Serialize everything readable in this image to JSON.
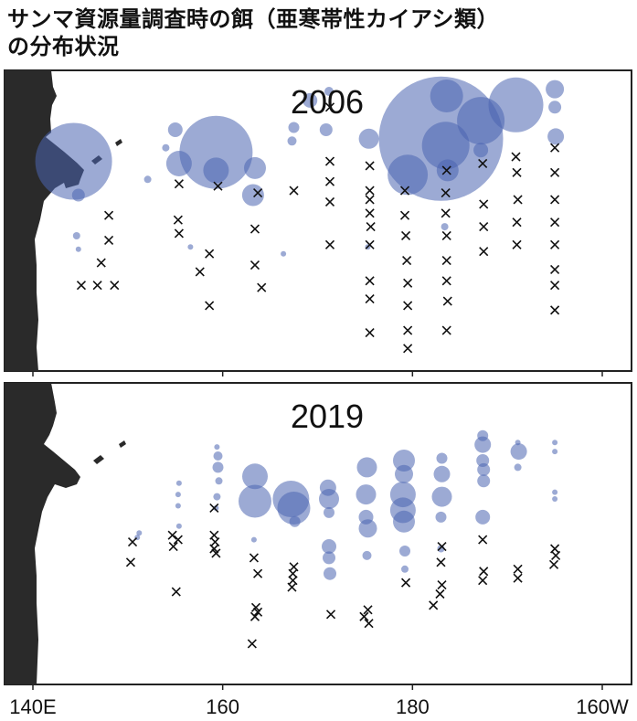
{
  "title": {
    "line1": "サンマ資源量調査時の餌（亜寒帯性カイアシ類）",
    "line2": "の分布状況"
  },
  "colors": {
    "bubble": "#4a64b0",
    "cross": "#111111",
    "land": "#2a2a2a",
    "frame": "#222222"
  },
  "chart_data": [
    {
      "type": "scatter",
      "title": "2006",
      "xlabel": "",
      "ylabel": "",
      "x_ticks": [
        "140E",
        "160",
        "180",
        "160W"
      ],
      "x_tick_values": [
        140,
        160,
        180,
        200
      ],
      "xlim": [
        140,
        202
      ],
      "ylim": [
        0,
        1
      ],
      "bubbles": [
        {
          "x": 144.3,
          "y": 0.93,
          "r": 42
        },
        {
          "x": 144.8,
          "y": 0.78,
          "r": 7
        },
        {
          "x": 144.6,
          "y": 0.6,
          "r": 4
        },
        {
          "x": 144.8,
          "y": 0.54,
          "r": 3
        },
        {
          "x": 152.1,
          "y": 0.85,
          "r": 4
        },
        {
          "x": 154,
          "y": 0.99,
          "r": 4
        },
        {
          "x": 155,
          "y": 1.07,
          "r": 8
        },
        {
          "x": 155.4,
          "y": 0.92,
          "r": 14
        },
        {
          "x": 159.3,
          "y": 0.97,
          "r": 40
        },
        {
          "x": 159.3,
          "y": 0.89,
          "r": 14
        },
        {
          "x": 156.6,
          "y": 0.55,
          "r": 3
        },
        {
          "x": 163.4,
          "y": 0.9,
          "r": 12
        },
        {
          "x": 163.2,
          "y": 0.78,
          "r": 12
        },
        {
          "x": 167.5,
          "y": 1.08,
          "r": 6
        },
        {
          "x": 167.3,
          "y": 1.02,
          "r": 5
        },
        {
          "x": 166.4,
          "y": 0.52,
          "r": 3
        },
        {
          "x": 169.2,
          "y": 1.2,
          "r": 8
        },
        {
          "x": 171.2,
          "y": 1.24,
          "r": 5
        },
        {
          "x": 170.9,
          "y": 1.07,
          "r": 7
        },
        {
          "x": 175.4,
          "y": 1.03,
          "r": 11
        },
        {
          "x": 175.3,
          "y": 0.55,
          "r": 3
        },
        {
          "x": 183,
          "y": 1.03,
          "r": 68
        },
        {
          "x": 179.5,
          "y": 0.87,
          "r": 22
        },
        {
          "x": 183.6,
          "y": 1.22,
          "r": 18
        },
        {
          "x": 183.5,
          "y": 1.0,
          "r": 26
        },
        {
          "x": 183.7,
          "y": 0.89,
          "r": 12
        },
        {
          "x": 183.4,
          "y": 0.64,
          "r": 4
        },
        {
          "x": 187.2,
          "y": 1.11,
          "r": 26
        },
        {
          "x": 187.2,
          "y": 0.98,
          "r": 8
        },
        {
          "x": 190.9,
          "y": 1.18,
          "r": 30
        },
        {
          "x": 195,
          "y": 1.25,
          "r": 10
        },
        {
          "x": 195,
          "y": 1.17,
          "r": 7
        },
        {
          "x": 195.1,
          "y": 1.04,
          "r": 9
        }
      ],
      "crosses": [
        [
          148,
          0.69
        ],
        [
          148,
          0.58
        ],
        [
          147.2,
          0.48
        ],
        [
          145.1,
          0.38
        ],
        [
          146.8,
          0.38
        ],
        [
          148.6,
          0.38
        ],
        [
          155.4,
          0.83
        ],
        [
          155.3,
          0.67
        ],
        [
          155.4,
          0.61
        ],
        [
          157.6,
          0.44
        ],
        [
          158.6,
          0.52
        ],
        [
          158.6,
          0.29
        ],
        [
          159.5,
          0.82
        ],
        [
          163.7,
          0.79
        ],
        [
          163.4,
          0.63
        ],
        [
          163.4,
          0.47
        ],
        [
          164.1,
          0.37
        ],
        [
          167.5,
          0.8
        ],
        [
          171.3,
          1.17
        ],
        [
          171.3,
          0.93
        ],
        [
          171.3,
          0.84
        ],
        [
          171.3,
          0.75
        ],
        [
          171.3,
          0.56
        ],
        [
          175.5,
          0.91
        ],
        [
          175.5,
          0.8
        ],
        [
          175.5,
          0.76
        ],
        [
          175.5,
          0.7
        ],
        [
          175.6,
          0.64
        ],
        [
          175.5,
          0.56
        ],
        [
          175.5,
          0.4
        ],
        [
          175.5,
          0.32
        ],
        [
          175.5,
          0.17
        ],
        [
          179.2,
          0.8
        ],
        [
          179.2,
          0.69
        ],
        [
          179.3,
          0.6
        ],
        [
          179.4,
          0.49
        ],
        [
          179.5,
          0.39
        ],
        [
          179.5,
          0.29
        ],
        [
          179.5,
          0.18
        ],
        [
          179.5,
          0.1
        ],
        [
          183.6,
          0.89
        ],
        [
          183.5,
          0.79
        ],
        [
          183.5,
          0.7
        ],
        [
          183.6,
          0.6
        ],
        [
          183.6,
          0.49
        ],
        [
          183.6,
          0.4
        ],
        [
          183.7,
          0.31
        ],
        [
          183.6,
          0.18
        ],
        [
          187.4,
          0.92
        ],
        [
          187.5,
          0.74
        ],
        [
          187.5,
          0.64
        ],
        [
          187.5,
          0.53
        ],
        [
          190.9,
          0.95
        ],
        [
          191,
          0.88
        ],
        [
          191.1,
          0.76
        ],
        [
          191,
          0.66
        ],
        [
          191,
          0.56
        ],
        [
          195,
          0.99
        ],
        [
          195,
          0.88
        ],
        [
          195,
          0.76
        ],
        [
          195,
          0.66
        ],
        [
          195,
          0.56
        ],
        [
          195,
          0.45
        ],
        [
          195,
          0.38
        ],
        [
          195,
          0.27
        ]
      ]
    },
    {
      "type": "scatter",
      "title": "2019",
      "xlabel": "",
      "ylabel": "",
      "x_ticks": [
        "140E",
        "160",
        "180",
        "160W"
      ],
      "x_tick_values": [
        140,
        160,
        180,
        200
      ],
      "xlim": [
        140,
        202
      ],
      "ylim": [
        0,
        1
      ],
      "bubbles": [
        {
          "x": 151.2,
          "y": 0.67,
          "r": 3
        },
        {
          "x": 151,
          "y": 0.65,
          "r": 3
        },
        {
          "x": 155.4,
          "y": 0.89,
          "r": 3
        },
        {
          "x": 155.3,
          "y": 0.84,
          "r": 3
        },
        {
          "x": 155.3,
          "y": 0.79,
          "r": 3
        },
        {
          "x": 155.4,
          "y": 0.7,
          "r": 3
        },
        {
          "x": 159.4,
          "y": 1.05,
          "r": 3
        },
        {
          "x": 159.5,
          "y": 1.01,
          "r": 5
        },
        {
          "x": 159.5,
          "y": 0.96,
          "r": 6
        },
        {
          "x": 159.6,
          "y": 0.9,
          "r": 4
        },
        {
          "x": 159.4,
          "y": 0.83,
          "r": 4
        },
        {
          "x": 159.3,
          "y": 0.78,
          "r": 3
        },
        {
          "x": 163.4,
          "y": 0.92,
          "r": 14
        },
        {
          "x": 163.4,
          "y": 0.81,
          "r": 18
        },
        {
          "x": 163.3,
          "y": 0.64,
          "r": 3
        },
        {
          "x": 167.2,
          "y": 0.82,
          "r": 20
        },
        {
          "x": 167.5,
          "y": 0.78,
          "r": 18
        },
        {
          "x": 167.6,
          "y": 0.72,
          "r": 6
        },
        {
          "x": 171.1,
          "y": 0.87,
          "r": 9
        },
        {
          "x": 171.2,
          "y": 0.82,
          "r": 11
        },
        {
          "x": 171.2,
          "y": 0.76,
          "r": 6
        },
        {
          "x": 171.2,
          "y": 0.61,
          "r": 8
        },
        {
          "x": 171.2,
          "y": 0.56,
          "r": 7
        },
        {
          "x": 171.3,
          "y": 0.49,
          "r": 7
        },
        {
          "x": 175.2,
          "y": 0.96,
          "r": 11
        },
        {
          "x": 175.1,
          "y": 0.84,
          "r": 11
        },
        {
          "x": 175.1,
          "y": 0.74,
          "r": 8
        },
        {
          "x": 175.3,
          "y": 0.69,
          "r": 10
        },
        {
          "x": 175.2,
          "y": 0.57,
          "r": 5
        },
        {
          "x": 179.1,
          "y": 0.99,
          "r": 12
        },
        {
          "x": 179.1,
          "y": 0.93,
          "r": 10
        },
        {
          "x": 179,
          "y": 0.84,
          "r": 14
        },
        {
          "x": 179,
          "y": 0.77,
          "r": 14
        },
        {
          "x": 179.1,
          "y": 0.72,
          "r": 12
        },
        {
          "x": 179.2,
          "y": 0.59,
          "r": 6
        },
        {
          "x": 179.2,
          "y": 0.51,
          "r": 4
        },
        {
          "x": 183.1,
          "y": 1.0,
          "r": 6
        },
        {
          "x": 183.1,
          "y": 0.93,
          "r": 9
        },
        {
          "x": 183.1,
          "y": 0.83,
          "r": 11
        },
        {
          "x": 183,
          "y": 0.74,
          "r": 6
        },
        {
          "x": 183,
          "y": 0.6,
          "r": 4
        },
        {
          "x": 187.4,
          "y": 1.1,
          "r": 6
        },
        {
          "x": 187.4,
          "y": 1.06,
          "r": 9
        },
        {
          "x": 187.4,
          "y": 0.99,
          "r": 7
        },
        {
          "x": 187.5,
          "y": 0.95,
          "r": 7
        },
        {
          "x": 187.5,
          "y": 0.9,
          "r": 7
        },
        {
          "x": 187.4,
          "y": 0.74,
          "r": 8
        },
        {
          "x": 191.1,
          "y": 1.07,
          "r": 3
        },
        {
          "x": 191.2,
          "y": 1.03,
          "r": 9
        },
        {
          "x": 191.1,
          "y": 0.96,
          "r": 4
        },
        {
          "x": 195,
          "y": 1.07,
          "r": 3
        },
        {
          "x": 195,
          "y": 1.03,
          "r": 3
        },
        {
          "x": 195,
          "y": 0.85,
          "r": 3
        },
        {
          "x": 195,
          "y": 0.82,
          "r": 3
        }
      ],
      "crosses": [
        [
          150.5,
          0.63
        ],
        [
          150.3,
          0.54
        ],
        [
          154.7,
          0.66
        ],
        [
          155.3,
          0.64
        ],
        [
          154.8,
          0.61
        ],
        [
          155.1,
          0.41
        ],
        [
          159.1,
          0.78
        ],
        [
          159.1,
          0.66
        ],
        [
          159.2,
          0.63
        ],
        [
          159.1,
          0.6
        ],
        [
          159.3,
          0.58
        ],
        [
          163.3,
          0.56
        ],
        [
          163.7,
          0.49
        ],
        [
          163.5,
          0.34
        ],
        [
          163.7,
          0.32
        ],
        [
          163.4,
          0.3
        ],
        [
          163.1,
          0.18
        ],
        [
          167.5,
          0.52
        ],
        [
          167.4,
          0.49
        ],
        [
          167.4,
          0.46
        ],
        [
          167.3,
          0.43
        ],
        [
          171.4,
          0.31
        ],
        [
          175.3,
          0.33
        ],
        [
          174.9,
          0.3
        ],
        [
          175.4,
          0.27
        ],
        [
          179.3,
          0.45
        ],
        [
          183.1,
          0.61
        ],
        [
          183,
          0.54
        ],
        [
          183.1,
          0.44
        ],
        [
          182.9,
          0.4
        ],
        [
          182.2,
          0.35
        ],
        [
          187.4,
          0.64
        ],
        [
          187.5,
          0.5
        ],
        [
          187.4,
          0.46
        ],
        [
          191.1,
          0.51
        ],
        [
          191.1,
          0.47
        ],
        [
          195,
          0.6
        ],
        [
          195.1,
          0.57
        ],
        [
          194.9,
          0.53
        ]
      ]
    }
  ]
}
